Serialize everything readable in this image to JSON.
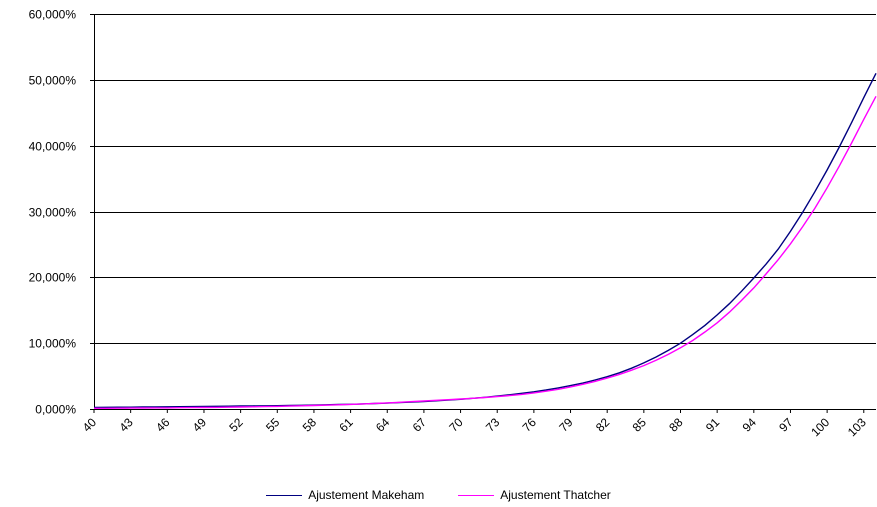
{
  "chart_data": {
    "type": "line",
    "title": "",
    "xlabel": "",
    "ylabel": "",
    "ylim": [
      0,
      60
    ],
    "y_tick_labels": [
      "0,000%",
      "10,000%",
      "20,000%",
      "30,000%",
      "40,000%",
      "50,000%",
      "60,000%"
    ],
    "y_ticks": [
      0,
      10,
      20,
      30,
      40,
      50,
      60
    ],
    "x_tick_labels": [
      "40",
      "43",
      "46",
      "49",
      "52",
      "55",
      "58",
      "61",
      "64",
      "67",
      "70",
      "73",
      "76",
      "79",
      "82",
      "85",
      "88",
      "91",
      "94",
      "97",
      "100",
      "103"
    ],
    "x": [
      40,
      41,
      42,
      43,
      44,
      45,
      46,
      47,
      48,
      49,
      50,
      51,
      52,
      53,
      54,
      55,
      56,
      57,
      58,
      59,
      60,
      61,
      62,
      63,
      64,
      65,
      66,
      67,
      68,
      69,
      70,
      71,
      72,
      73,
      74,
      75,
      76,
      77,
      78,
      79,
      80,
      81,
      82,
      83,
      84,
      85,
      86,
      87,
      88,
      89,
      90,
      91,
      92,
      93,
      94,
      95,
      96,
      97,
      98,
      99,
      100,
      101,
      102,
      103,
      104
    ],
    "grid": "horizontal",
    "legend_position": "bottom",
    "series": [
      {
        "name": "Ajustement Makeham",
        "color": "#000080",
        "values": [
          0.25,
          0.26,
          0.27,
          0.28,
          0.3,
          0.31,
          0.33,
          0.35,
          0.37,
          0.39,
          0.41,
          0.43,
          0.45,
          0.47,
          0.48,
          0.5,
          0.53,
          0.56,
          0.6,
          0.64,
          0.68,
          0.72,
          0.78,
          0.84,
          0.9,
          0.97,
          1.05,
          1.14,
          1.24,
          1.35,
          1.48,
          1.62,
          1.78,
          1.96,
          2.16,
          2.38,
          2.62,
          2.89,
          3.2,
          3.55,
          3.94,
          4.4,
          4.9,
          5.5,
          6.2,
          7.0,
          7.9,
          8.9,
          10.0,
          11.3,
          12.7,
          14.3,
          16.0,
          17.9,
          19.9,
          22.0,
          24.3,
          27.0,
          29.9,
          33.0,
          36.3,
          39.8,
          43.5,
          47.3,
          51.0
        ]
      },
      {
        "name": "Ajustement Thatcher",
        "color": "#FF00FF",
        "values": [
          0.1,
          0.11,
          0.12,
          0.13,
          0.15,
          0.16,
          0.17,
          0.19,
          0.21,
          0.23,
          0.25,
          0.27,
          0.3,
          0.33,
          0.36,
          0.4,
          0.44,
          0.48,
          0.53,
          0.58,
          0.64,
          0.7,
          0.77,
          0.85,
          0.93,
          1.02,
          1.12,
          1.22,
          1.32,
          1.42,
          1.52,
          1.62,
          1.74,
          1.88,
          2.04,
          2.22,
          2.44,
          2.7,
          3.0,
          3.35,
          3.75,
          4.2,
          4.7,
          5.25,
          5.9,
          6.6,
          7.4,
          8.3,
          9.3,
          10.4,
          11.7,
          13.1,
          14.7,
          16.5,
          18.4,
          20.5,
          22.7,
          25.1,
          27.7,
          30.5,
          33.6,
          36.9,
          40.4,
          44.0,
          47.5
        ]
      }
    ]
  }
}
